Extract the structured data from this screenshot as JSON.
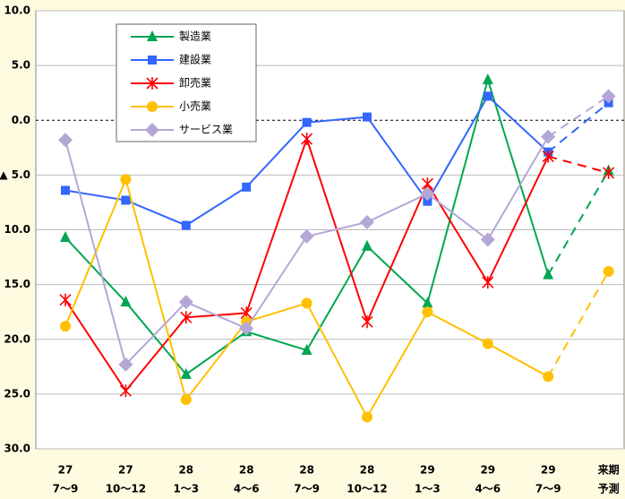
{
  "chart_data": {
    "type": "line",
    "categories": [
      [
        "27",
        "7～9"
      ],
      [
        "27",
        "10～12"
      ],
      [
        "28",
        "1～3"
      ],
      [
        "28",
        "4～6"
      ],
      [
        "28",
        "7～9"
      ],
      [
        "28",
        "10～12"
      ],
      [
        "29",
        "1～3"
      ],
      [
        "29",
        "4～6"
      ],
      [
        "29",
        "7～9"
      ],
      [
        "来期",
        "予測"
      ]
    ],
    "series": [
      {
        "name": "製造業",
        "color": "#00a650",
        "marker": "triangle",
        "values": [
          -10.7,
          -16.6,
          -23.2,
          -19.3,
          -21.0,
          -11.5,
          -16.7,
          3.7,
          -14.1,
          -4.6
        ]
      },
      {
        "name": "建設業",
        "color": "#3366ff",
        "marker": "square",
        "values": [
          -6.4,
          -7.3,
          -9.6,
          -6.1,
          -0.2,
          0.3,
          -7.4,
          2.2,
          -2.9,
          1.6
        ]
      },
      {
        "name": "卸売業",
        "color": "#ff0000",
        "marker": "x",
        "values": [
          -16.4,
          -24.7,
          -18.0,
          -17.6,
          -1.7,
          -18.4,
          -5.8,
          -14.8,
          -3.3,
          -4.8
        ]
      },
      {
        "name": "小売業",
        "color": "#ffc000",
        "marker": "circle",
        "values": [
          -18.8,
          -5.4,
          -25.5,
          -18.4,
          -16.7,
          -27.1,
          -17.5,
          -20.4,
          -23.4,
          -13.8
        ]
      },
      {
        "name": "サービス業",
        "color": "#b4a7d6",
        "marker": "diamond",
        "values": [
          -1.8,
          -22.3,
          -16.6,
          -19.0,
          -10.6,
          -9.3,
          -6.7,
          -10.9,
          -1.5,
          2.2
        ]
      }
    ],
    "ylim": [
      -30,
      10
    ],
    "yticks": [
      {
        "value": 10,
        "label": "10.0"
      },
      {
        "value": 5,
        "label": "5.0"
      },
      {
        "value": 0,
        "label": "0.0"
      },
      {
        "value": -5,
        "label": "▲ 5.0"
      },
      {
        "value": -10,
        "label": "▲ 10.0"
      },
      {
        "value": -15,
        "label": "▲ 15.0"
      },
      {
        "value": -20,
        "label": "▲ 20.0"
      },
      {
        "value": -25,
        "label": "▲ 25.0"
      },
      {
        "value": -30,
        "label": "▲ 30.0"
      }
    ],
    "grid": true,
    "dashed_last_segment": true,
    "legend": "upper left"
  }
}
